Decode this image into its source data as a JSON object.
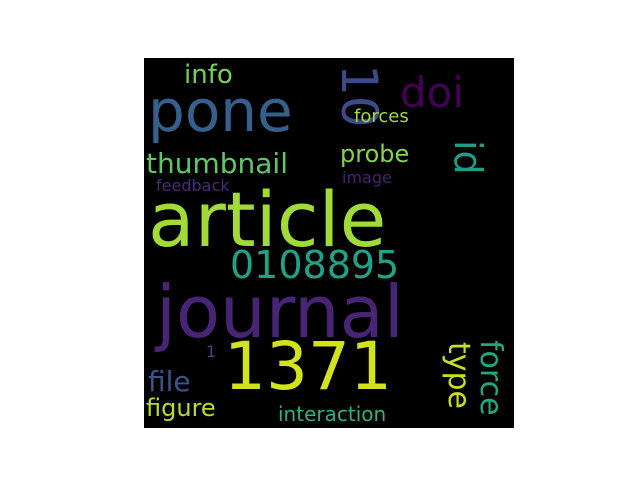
{
  "word_cloud": {
    "background": "#000000",
    "words": [
      {
        "id": "article",
        "text": "article",
        "color": "#a2da37",
        "vertical": false
      },
      {
        "id": "journal",
        "text": "journal",
        "color": "#482475",
        "vertical": false
      },
      {
        "id": "pone",
        "text": "pone",
        "color": "#355f8d",
        "vertical": false
      },
      {
        "id": "1371",
        "text": "1371",
        "color": "#d2e21b",
        "vertical": false
      },
      {
        "id": "10",
        "text": "10",
        "color": "#3e4989",
        "vertical": true
      },
      {
        "id": "0108895",
        "text": "0108895",
        "color": "#1fa287",
        "vertical": false
      },
      {
        "id": "thumbnail",
        "text": "thumbnail",
        "color": "#5ec962",
        "vertical": false
      },
      {
        "id": "doi",
        "text": "doi",
        "color": "#440154",
        "vertical": false
      },
      {
        "id": "id",
        "text": "id",
        "color": "#1f9e89",
        "vertical": true
      },
      {
        "id": "info",
        "text": "info",
        "color": "#73d055",
        "vertical": false
      },
      {
        "id": "probe",
        "text": "probe",
        "color": "#84d44b",
        "vertical": false
      },
      {
        "id": "type",
        "text": "type",
        "color": "#c8e020",
        "vertical": true
      },
      {
        "id": "force",
        "text": "force",
        "color": "#22a884",
        "vertical": true
      },
      {
        "id": "file",
        "text": "file",
        "color": "#3b528b",
        "vertical": false
      },
      {
        "id": "figure",
        "text": "figure",
        "color": "#b5de2b",
        "vertical": false
      },
      {
        "id": "forces",
        "text": "forces",
        "color": "#a0da39",
        "vertical": false
      },
      {
        "id": "interaction",
        "text": "interaction",
        "color": "#2db27d",
        "vertical": false
      },
      {
        "id": "feedback",
        "text": "feedback",
        "color": "#472c7a",
        "vertical": false
      },
      {
        "id": "image",
        "text": "image",
        "color": "#482173",
        "vertical": false
      },
      {
        "id": "1",
        "text": "1",
        "color": "#3f4788",
        "vertical": false
      }
    ]
  }
}
